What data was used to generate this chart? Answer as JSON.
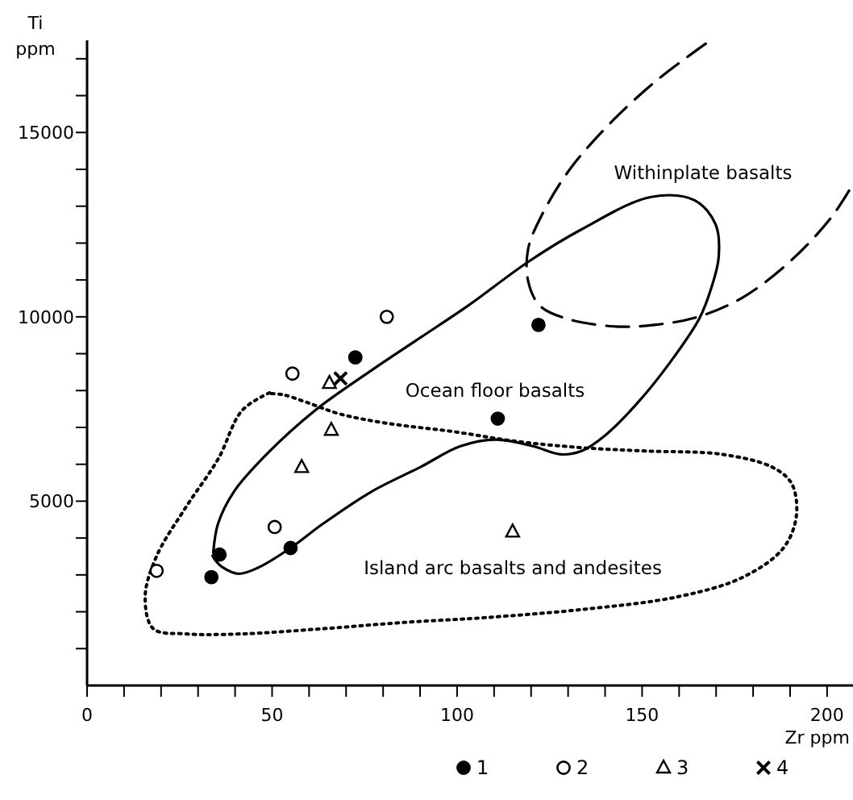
{
  "chart_data": {
    "type": "scatter",
    "xlabel": "Zr ppm",
    "ylabel": "Ti ppm",
    "xlim": [
      0,
      207
    ],
    "ylim": [
      0,
      17500
    ],
    "xticks": [
      0,
      {
        "value": 10,
        "label": null
      },
      {
        "value": 20,
        "label": null
      },
      {
        "value": 30,
        "label": null
      },
      {
        "value": 40,
        "label": null
      },
      50,
      {
        "value": 60,
        "label": null
      },
      {
        "value": 70,
        "label": null
      },
      {
        "value": 80,
        "label": null
      },
      {
        "value": 90,
        "label": null
      },
      100,
      {
        "value": 110,
        "label": null
      },
      {
        "value": 120,
        "label": null
      },
      {
        "value": 130,
        "label": null
      },
      {
        "value": 140,
        "label": null
      },
      150,
      {
        "value": 160,
        "label": null
      },
      {
        "value": 170,
        "label": null
      },
      {
        "value": 180,
        "label": null
      },
      {
        "value": 190,
        "label": null
      },
      200
    ],
    "yticks": [
      {
        "value": 1000,
        "label": null
      },
      {
        "value": 2000,
        "label": null
      },
      {
        "value": 3000,
        "label": null
      },
      {
        "value": 4000,
        "label": null
      },
      5000,
      {
        "value": 6000,
        "label": null
      },
      {
        "value": 7000,
        "label": null
      },
      {
        "value": 8000,
        "label": null
      },
      {
        "value": 9000,
        "label": null
      },
      10000,
      {
        "value": 11000,
        "label": null
      },
      {
        "value": 12000,
        "label": null
      },
      {
        "value": 13000,
        "label": null
      },
      {
        "value": 14000,
        "label": null
      },
      15000,
      {
        "value": 16000,
        "label": null
      },
      {
        "value": 17000,
        "label": null
      }
    ],
    "grid": false,
    "legend": "bottom",
    "series": [
      {
        "type": "line",
        "color": "#000000",
        "line_style": "solid",
        "marker": "none",
        "x": [
          34.1,
          35.4,
          39.7,
          48.5,
          61.6,
          76.9,
          90.0,
          103.1,
          119.2,
          133.6,
          152.4,
          164.2,
          169.9,
          170.7,
          168.6,
          165.5,
          157.6,
          148.9,
          140.2,
          133.6,
          127.9,
          120.5,
          110.5,
          100.9,
          90.0,
          76.9,
          63.8,
          55.0,
          46.3,
          41.0,
          36.7,
          34.5,
          33.9
        ],
        "values": [
          3600,
          4390,
          5260,
          6270,
          7460,
          8550,
          9430,
          10310,
          11490,
          12370,
          13250,
          13160,
          12500,
          11620,
          10750,
          9960,
          8770,
          7680,
          6800,
          6360,
          6270,
          6490,
          6670,
          6490,
          5920,
          5260,
          4390,
          3730,
          3200,
          3030,
          3200,
          3420,
          3520
        ]
      },
      {
        "type": "line",
        "color": "#000000",
        "line_style": "dashed",
        "marker": "none",
        "x": [
          167.2,
          153.3,
          140.2,
          130.1,
          122.7,
          119.2,
          119.2,
          122.3,
          129.3,
          142.4,
          153.3,
          165.1,
          177.3,
          190.4,
          201.3,
          207.0
        ],
        "values": [
          17410,
          16360,
          15130,
          13950,
          12720,
          11840,
          10970,
          10310,
          9960,
          9740,
          9780,
          10000,
          10530,
          11540,
          12720,
          13600
        ]
      },
      {
        "type": "line",
        "color": "#000000",
        "line_style": "dotted",
        "marker": "none",
        "x": [
          49.3,
          41.9,
          35.4,
          26.6,
          18.8,
          15.7,
          17.9,
          26.6,
          41.9,
          63.8,
          85.6,
          107.4,
          133.6,
          159.8,
          177.3,
          188.2,
          191.7,
          190.4,
          185.2,
          171.6,
          151.1,
          133.6,
          116.2,
          98.7,
          81.2,
          68.1,
          59.4,
          52.8,
          48.6
        ],
        "values": [
          7940,
          7460,
          6140,
          4820,
          3510,
          2410,
          1540,
          1400,
          1400,
          1540,
          1710,
          1840,
          2060,
          2410,
          2940,
          3730,
          4610,
          5480,
          5920,
          6270,
          6360,
          6450,
          6620,
          6890,
          7110,
          7370,
          7680,
          7890,
          7920
        ]
      },
      {
        "name": "1",
        "color": "#000000",
        "marker": "circle",
        "x": [
          72.5,
          33.6,
          35.8,
          55.0,
          111.0,
          122.0
        ],
        "values": [
          8900,
          2940,
          3550,
          3730,
          7240,
          9780
        ]
      },
      {
        "name": "2",
        "color": "#ffffff",
        "marker": "circle",
        "x": [
          18.8,
          50.7,
          55.5,
          81.0
        ],
        "values": [
          3110,
          4300,
          8460,
          10000
        ]
      },
      {
        "name": "3",
        "color": "#ffffff",
        "marker": "triangle",
        "x": [
          65.5,
          66.0,
          58.0,
          115.0
        ],
        "values": [
          8200,
          6930,
          5920,
          4170
        ]
      },
      {
        "name": "4",
        "color": "#000000",
        "marker": "cross",
        "x": [
          68.5
        ],
        "values": [
          8330
        ]
      }
    ],
    "annotations": [
      "Withinplate basalts",
      "Ocean floor basalts",
      "Island arc basalts and andesites"
    ]
  }
}
